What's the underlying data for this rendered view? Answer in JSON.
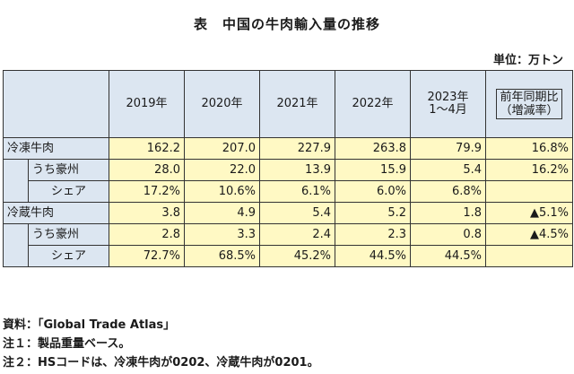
{
  "title": "表　中国の牛肉輸入量の推移",
  "unit": "単位：万トン",
  "columns": [
    "2019年",
    "2020年",
    "2021年",
    "2022年",
    "2023年\n1～4月",
    "前年同期比\n（増減率）"
  ],
  "rows": [
    {
      "label": "冷凍牛肉",
      "values": [
        "162.2",
        "207.0",
        "227.9",
        "263.8",
        "79.9",
        "16.8%"
      ]
    },
    {
      "label": "うち豪州",
      "values": [
        "28.0",
        "22.0",
        "13.9",
        "15.9",
        "5.4",
        "16.2%"
      ]
    },
    {
      "label": "シェア",
      "values": [
        "17.2%",
        "10.6%",
        "6.1%",
        "6.0%",
        "6.8%",
        ""
      ]
    },
    {
      "label": "冷蔵牛肉",
      "values": [
        "3.8",
        "4.9",
        "5.4",
        "5.2",
        "1.8",
        "▲5.1%"
      ]
    },
    {
      "label": "うち豪州",
      "values": [
        "2.8",
        "3.3",
        "2.4",
        "2.3",
        "0.8",
        "▲4.5%"
      ]
    },
    {
      "label": "シェア",
      "values": [
        "72.7%",
        "68.5%",
        "45.2%",
        "44.5%",
        "44.5%",
        ""
      ]
    }
  ],
  "notes": [
    "資料：「Global Trade Atlas」",
    "注１：製品重量ベース。",
    "注２：HSコードは、冷凍牛肉が0202、冷蔵牛肉が0201。"
  ]
}
